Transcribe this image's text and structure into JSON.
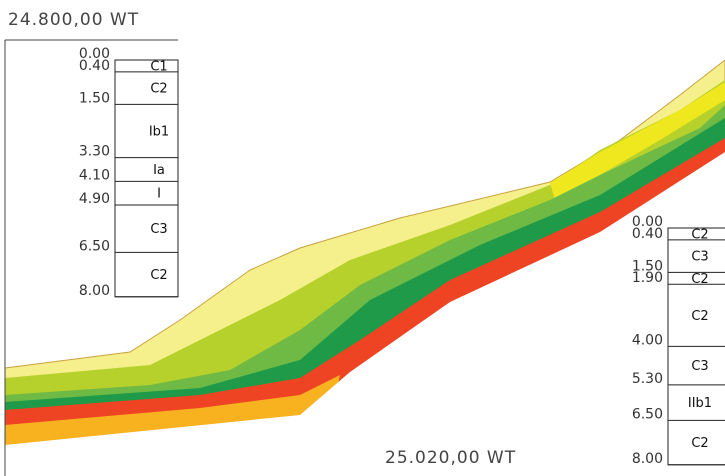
{
  "header": {
    "left_station": "24.800,00 WT",
    "bottom_station": "25.020,00 WT"
  },
  "boreholes": [
    {
      "depths": [
        "0.00",
        "0.40",
        "1.50",
        "3.30",
        "4.10",
        "4.90",
        "6.50",
        "8.00"
      ],
      "layers": [
        "C1",
        "C2",
        "Ib1",
        "Ia",
        "I",
        "C3",
        "C2"
      ]
    },
    {
      "depths": [
        "0.00",
        "0.40",
        "1.50",
        "1.90",
        "4.00",
        "5.30",
        "6.50",
        "8.00"
      ],
      "layers": [
        "C2",
        "C3",
        "C2",
        "C2",
        "C3",
        "IIb1",
        "C2"
      ]
    }
  ]
}
